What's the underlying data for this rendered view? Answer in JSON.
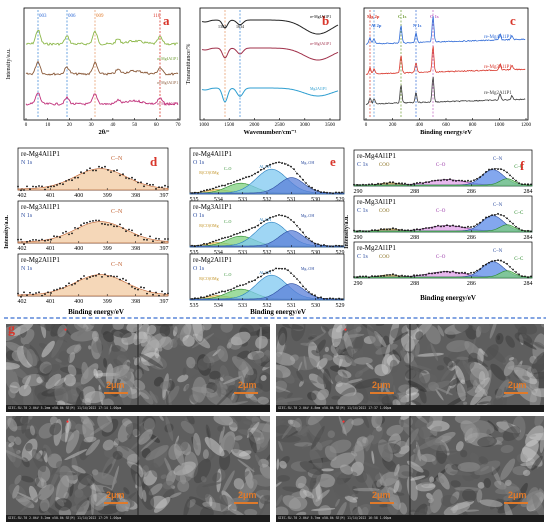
{
  "panels": {
    "a": {
      "letter": "a",
      "ylabel": "Intensity/a.u.",
      "xlabel": "2θ/°",
      "xticks": [
        "0",
        "10",
        "20",
        "30",
        "40",
        "50",
        "60",
        "70"
      ],
      "peaks": [
        "003",
        "006",
        "009",
        "110"
      ],
      "series": [
        "re-Mg4Al1P1",
        "re-Mg3Al1P1",
        "re-Mg2Al1P1"
      ]
    },
    "b": {
      "letter": "b",
      "ylabel": "Transmittance/%",
      "xlabel": "Wavenumber/cm⁻¹",
      "xticks": [
        "1000",
        "1500",
        "2000",
        "2500",
        "3000",
        "3500"
      ],
      "peaks": [
        "1384",
        "1634"
      ],
      "series": [
        "re-Mg4Al1P1",
        "re-Mg3Al1P1",
        "Mg2Al1P1"
      ]
    },
    "c": {
      "letter": "c",
      "xlabel": "Binding energy/eV",
      "xticks": [
        "0",
        "200",
        "400",
        "600",
        "800",
        "1000",
        "1200"
      ],
      "peaks": [
        "Mg 2p",
        "Al 2p",
        "C 1s",
        "N 1s",
        "O 1s"
      ],
      "series": [
        "re-Mg4Al1P1",
        "re-Mg3Al1P1",
        "re-Mg2Al1P1"
      ]
    },
    "d": {
      "letter": "d",
      "xlabel": "Binding energy/eV",
      "ylabel": "Intensity/a.u.",
      "xticks": [
        "402",
        "401",
        "400",
        "399",
        "398",
        "397"
      ],
      "rows": [
        {
          "sample": "re-Mg4Al1P1",
          "core": "N 1s",
          "peaks": [
            "C–N"
          ]
        },
        {
          "sample": "re-Mg3Al1P1",
          "core": "N 1s",
          "peaks": [
            "C–N"
          ]
        },
        {
          "sample": "re-Mg2Al1P1",
          "core": "N 1s",
          "peaks": [
            "C–N"
          ]
        }
      ]
    },
    "e": {
      "letter": "e",
      "xlabel": "Binding energy/eV",
      "xticks": [
        "535",
        "534",
        "533",
        "532",
        "531",
        "530",
        "529"
      ],
      "rows": [
        {
          "sample": "re-Mg4Al1P1",
          "core": "O 1s",
          "peaks": [
            "R(CO)OMg",
            "C–O",
            "Al–OH",
            "Mg–OH"
          ]
        },
        {
          "sample": "re-Mg3Al1P1",
          "core": "O 1s",
          "peaks": [
            "R(CO)OMg",
            "C–O",
            "Al–OH",
            "Mg–OH"
          ]
        },
        {
          "sample": "re-Mg2Al1P1",
          "core": "O 1s",
          "peaks": [
            "R(CO)OMg",
            "C–O",
            "Al–OH",
            "Mg–OH"
          ]
        }
      ]
    },
    "f": {
      "letter": "f",
      "xlabel": "Binding energy/eV",
      "xticks": [
        "290",
        "288",
        "286",
        "284"
      ],
      "rows": [
        {
          "sample": "re-Mg4Al1P1",
          "core": "C 1s",
          "peaks": [
            "COO",
            "C–O",
            "C–N",
            "C–C"
          ]
        },
        {
          "sample": "re-Mg3Al1P1",
          "core": "C 1s",
          "peaks": [
            "COO",
            "C–O",
            "C–N",
            "C–C"
          ]
        },
        {
          "sample": "re-Mg2Al1P1",
          "core": "C 1s",
          "peaks": [
            "COO",
            "C–O",
            "C–N",
            "C–C"
          ]
        }
      ]
    },
    "g": {
      "letter": "g",
      "images": [
        {
          "scale": "2μm",
          "info": "GIEC-SU-70 2.0kV 5.2mm x50.0k SE(M) 11/14/2022 17:14  1.00μm"
        },
        {
          "scale": "2μm",
          "info": "GIEC-SU-70 2.0kV 4.8mm x50.0k SE(M) 11/14/2022 17:37  1.00μm"
        },
        {
          "scale": "2μm",
          "info": "GIEC-SU-70 2.0kV 5.2mm x50.0k SE(M) 11/14/2022 17:29  1.00μm"
        },
        {
          "scale": "2μm",
          "info": "GIEC-SU-70 2.0kV 5.7mm x50.0k SE(M) 11/14/2022 16:58  1.00μm"
        }
      ]
    }
  },
  "colors": {
    "mg4": "#2f6ad6",
    "mg3": "#d8352a",
    "mg2": "#3b3b3b",
    "xrd1": "#8db84a",
    "xrd2": "#8a5a3a",
    "xrd3": "#c0307a",
    "letter": "#d8352a",
    "fill_cn": "#f2c9a0",
    "divider": "#3a6fd0"
  }
}
